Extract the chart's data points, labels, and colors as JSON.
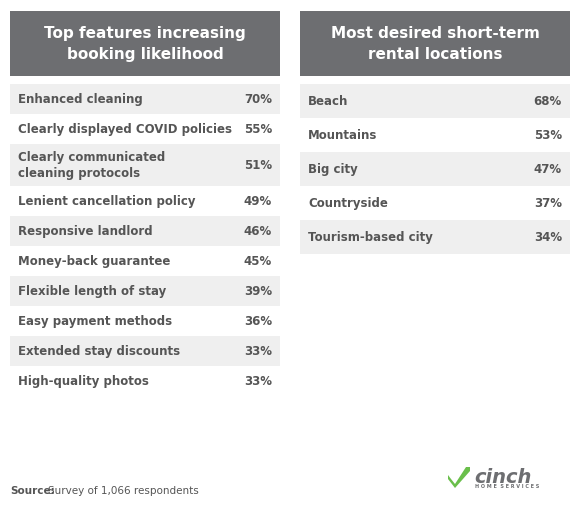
{
  "left_title": "Top features increasing\nbooking likelihood",
  "right_title": "Most desired short-term\nrental locations",
  "left_items": [
    {
      "label": "Enhanced cleaning",
      "value": "70%"
    },
    {
      "label": "Clearly displayed COVID policies",
      "value": "55%"
    },
    {
      "label": "Clearly communicated\ncleaning protocols",
      "value": "51%"
    },
    {
      "label": "Lenient cancellation policy",
      "value": "49%"
    },
    {
      "label": "Responsive landlord",
      "value": "46%"
    },
    {
      "label": "Money-back guarantee",
      "value": "45%"
    },
    {
      "label": "Flexible length of stay",
      "value": "39%"
    },
    {
      "label": "Easy payment methods",
      "value": "36%"
    },
    {
      "label": "Extended stay discounts",
      "value": "33%"
    },
    {
      "label": "High-quality photos",
      "value": "33%"
    }
  ],
  "right_items": [
    {
      "label": "Beach",
      "value": "68%"
    },
    {
      "label": "Mountains",
      "value": "53%"
    },
    {
      "label": "Big city",
      "value": "47%"
    },
    {
      "label": "Countryside",
      "value": "37%"
    },
    {
      "label": "Tourism-based city",
      "value": "34%"
    }
  ],
  "header_bg": "#6d6e71",
  "header_text": "#ffffff",
  "row_bg_even": "#efefef",
  "row_bg_odd": "#ffffff",
  "text_color": "#555555",
  "value_color": "#555555",
  "bg_color": "#ffffff",
  "title_fontsize": 11,
  "row_fontsize": 8.5,
  "source_fontsize": 7.5,
  "cinch_green": "#6abf4b",
  "cinch_text": "#6d6e71"
}
